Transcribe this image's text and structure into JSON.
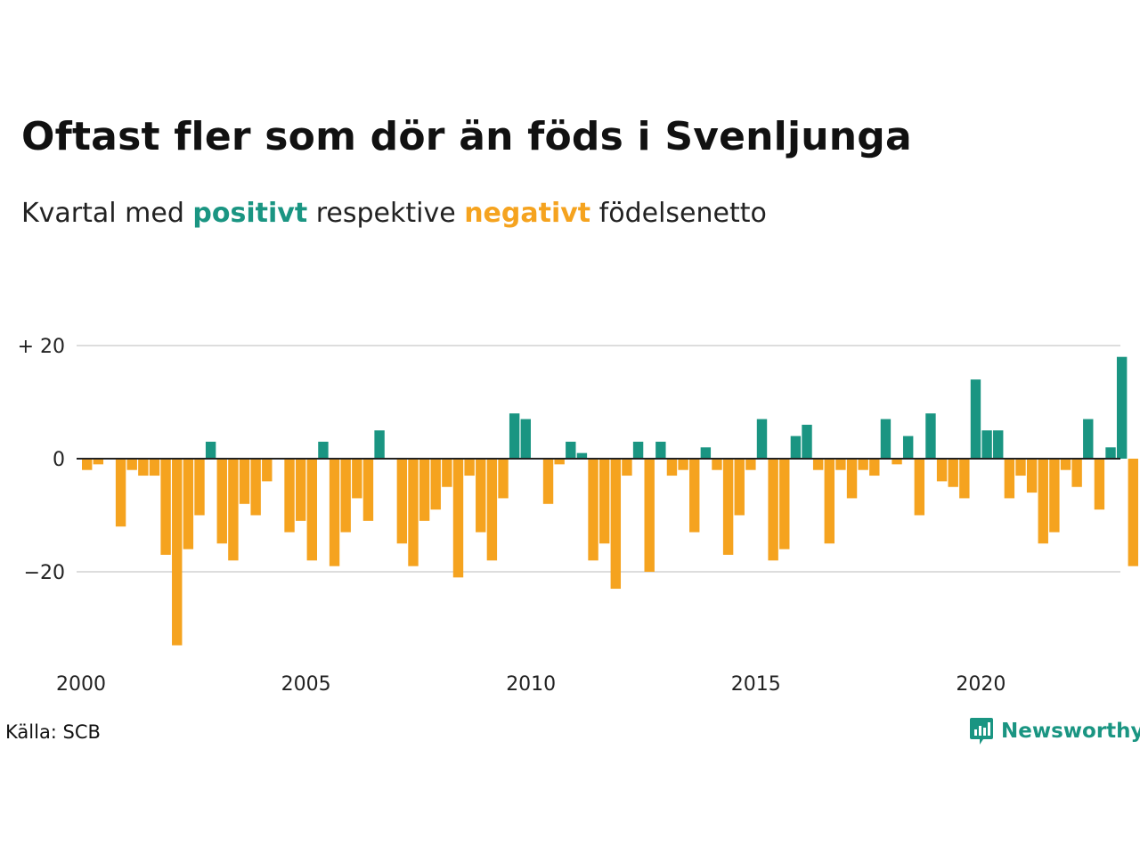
{
  "title": "Oftast fler som dör än föds i Svenljunga",
  "subtitle": {
    "prefix": "Kvartal med ",
    "positive_word": "positivt",
    "middle": " respektive ",
    "negative_word": "negativt",
    "suffix": " födelsenetto"
  },
  "source": "Källa: SCB",
  "logo_text": "Newsworthy",
  "colors": {
    "positive": "#1a9582",
    "negative": "#f5a31f",
    "grid": "#dddddd",
    "zero_line": "#222222"
  },
  "chart_data": {
    "type": "bar",
    "title": "Oftast fler som dör än föds i Svenljunga",
    "subtitle": "Kvartal med positivt respektive negativt födelsenetto",
    "xlabel": "",
    "ylabel": "",
    "x_start": 2000,
    "periods_per_year": 4,
    "x_ticks": [
      2000,
      2005,
      2010,
      2015,
      2020
    ],
    "y_ticks": [
      {
        "value": 20,
        "label": "+ 20"
      },
      {
        "value": 0,
        "label": "0"
      },
      {
        "value": -20,
        "label": "−20"
      }
    ],
    "ylim": [
      -35,
      22
    ],
    "grid": true,
    "values": [
      -2,
      -1,
      0,
      -12,
      -2,
      -3,
      -3,
      -17,
      -33,
      -16,
      -10,
      3,
      -15,
      -18,
      -8,
      -10,
      -4,
      0,
      -13,
      -11,
      -18,
      3,
      -19,
      -13,
      -7,
      -11,
      5,
      0,
      -15,
      -19,
      -11,
      -9,
      -5,
      -21,
      -3,
      -13,
      -18,
      -7,
      8,
      7,
      0,
      -8,
      -1,
      3,
      1,
      -18,
      -15,
      -23,
      -3,
      3,
      -20,
      3,
      -3,
      -2,
      -13,
      2,
      -2,
      -17,
      -10,
      -2,
      7,
      -18,
      -16,
      4,
      6,
      -2,
      -15,
      -2,
      -7,
      -2,
      -3,
      7,
      -1,
      4,
      -10,
      8,
      -4,
      -5,
      -7,
      14,
      5,
      5,
      -7,
      -3,
      -6,
      -15,
      -13,
      -2,
      -5,
      7,
      -9,
      2,
      18,
      -19
    ]
  }
}
